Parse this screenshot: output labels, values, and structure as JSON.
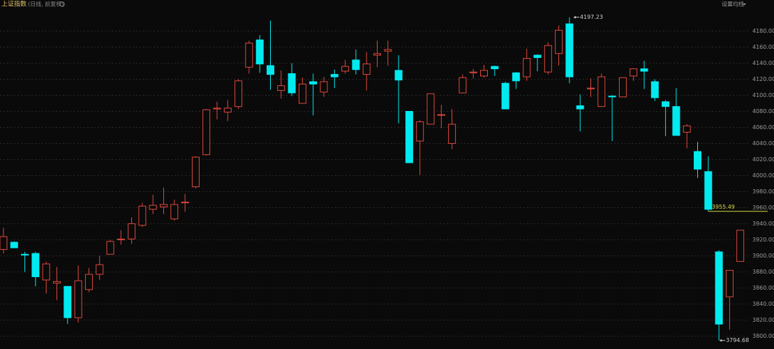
{
  "chart_data": {
    "type": "candlestick",
    "title": "上证指数",
    "subtitle": "(日线, 前复权)",
    "settings_label": "设置均线",
    "up_color": "#e0483c",
    "down_color": "#00eaf0",
    "marker_color": "#d8d84a",
    "grid": true,
    "open": [
      3908,
      3917,
      3902,
      3903,
      3870,
      3866,
      3862,
      3823,
      3858,
      3877,
      3902,
      3920,
      3921,
      3938,
      3958,
      3961,
      3946,
      3966,
      3986,
      4026,
      4083,
      4079,
      4086,
      4135,
      4169,
      4137,
      4106,
      4127,
      4090,
      4117,
      4104,
      4126,
      4130,
      4144,
      4126,
      4150,
      4155,
      4131,
      4080,
      4043,
      4064,
      4075,
      4040,
      4103,
      4128,
      4124,
      4136,
      4115,
      4128,
      4123,
      4150,
      4129,
      4152,
      4189,
      4087,
      4108,
      4086,
      4099,
      4098,
      4124,
      4133,
      4117,
      4092,
      4086,
      4054,
      4030,
      4005,
      3905,
      3849,
      3893
    ],
    "high": [
      3935,
      3918,
      3905,
      3905,
      3893,
      3886,
      3862,
      3888,
      3885,
      3900,
      3920,
      3932,
      3948,
      3966,
      3976,
      3985,
      3970,
      3977,
      4024,
      4083,
      4092,
      4094,
      4120,
      4168,
      4175,
      4193,
      4131,
      4140,
      4122,
      4127,
      4123,
      4132,
      4144,
      4157,
      4154,
      4168,
      4168,
      4150,
      4080,
      4069,
      4102,
      4088,
      4083,
      4126,
      4133,
      4138,
      4137,
      4117,
      4129,
      4158,
      4151,
      4166,
      4187,
      4197.23,
      4101,
      4121,
      4127,
      4100,
      4122,
      4133,
      4143,
      4120,
      4094,
      4109,
      4064,
      4042,
      4024,
      3907,
      3882,
      3932
    ],
    "low": [
      3903,
      3910,
      3880,
      3862,
      3853,
      3845,
      3815,
      3817,
      3855,
      3870,
      3902,
      3914,
      3915,
      3936,
      3952,
      3952,
      3944,
      3955,
      3984,
      4025,
      4070,
      4068,
      4083,
      4127,
      4128,
      4107,
      4096,
      4099,
      4090,
      4075,
      4098,
      4109,
      4127,
      4126,
      4106,
      4135,
      4137,
      4065,
      4016,
      4001,
      4064,
      4059,
      4033,
      4103,
      4121,
      4122,
      4124,
      4083,
      4108,
      4118,
      4130,
      4126,
      4137,
      4115,
      4055,
      4098,
      4086,
      4043,
      4098,
      4118,
      4108,
      4093,
      4049,
      4050,
      4034,
      3997,
      3955.49,
      3794.68,
      3808,
      3893
    ],
    "close": [
      3924,
      3910,
      3901,
      3874,
      3890,
      3868,
      3823,
      3869,
      3877,
      3889,
      3918,
      3921,
      3940,
      3962,
      3963,
      3964,
      3964,
      3967,
      4023,
      4082,
      4084,
      4084,
      4118,
      4165,
      4139,
      4126,
      4112,
      4103,
      4114,
      4114,
      4117,
      4123,
      4136,
      4132,
      4139,
      4152,
      4157,
      4119,
      4016,
      4067,
      4102,
      4076,
      4064,
      4122,
      4129,
      4131,
      4133,
      4083,
      4118,
      4146,
      4147,
      4162,
      4181,
      4123,
      4083,
      4109,
      4123,
      4098,
      4122,
      4133,
      4130,
      4097,
      4086,
      4050,
      4062,
      4008,
      3958,
      3815,
      3882,
      3932
    ],
    "annotations": [
      4197.23,
      3955.49,
      3794.68
    ],
    "ylim": [
      3784,
      4210
    ],
    "yticks": [
      {
        "value": 3800,
        "label": "3800.00"
      },
      {
        "value": 3820,
        "label": "3820.00"
      },
      {
        "value": 3840,
        "label": "3840.00"
      },
      {
        "value": 3860,
        "label": "3860.00"
      },
      {
        "value": 3880,
        "label": "3880.00"
      },
      {
        "value": 3900,
        "label": "3900.00"
      },
      {
        "value": 3920,
        "label": "3920.00"
      },
      {
        "value": 3940,
        "label": "3940.00"
      },
      {
        "value": 3960,
        "label": "3960.00"
      },
      {
        "value": 3980,
        "label": "3980.00"
      },
      {
        "value": 4000,
        "label": "4000.00"
      },
      {
        "value": 4020,
        "label": "4020.00"
      },
      {
        "value": 4040,
        "label": "4040.00"
      },
      {
        "value": 4060,
        "label": "4060.00"
      },
      {
        "value": 4080,
        "label": "4080.00"
      },
      {
        "value": 4100,
        "label": "4100.00"
      },
      {
        "value": 4120,
        "label": "4120.00"
      },
      {
        "value": 4140,
        "label": "4140.00"
      },
      {
        "value": 4160,
        "label": "4160.00"
      },
      {
        "value": 4180,
        "label": "4180.00"
      }
    ]
  }
}
